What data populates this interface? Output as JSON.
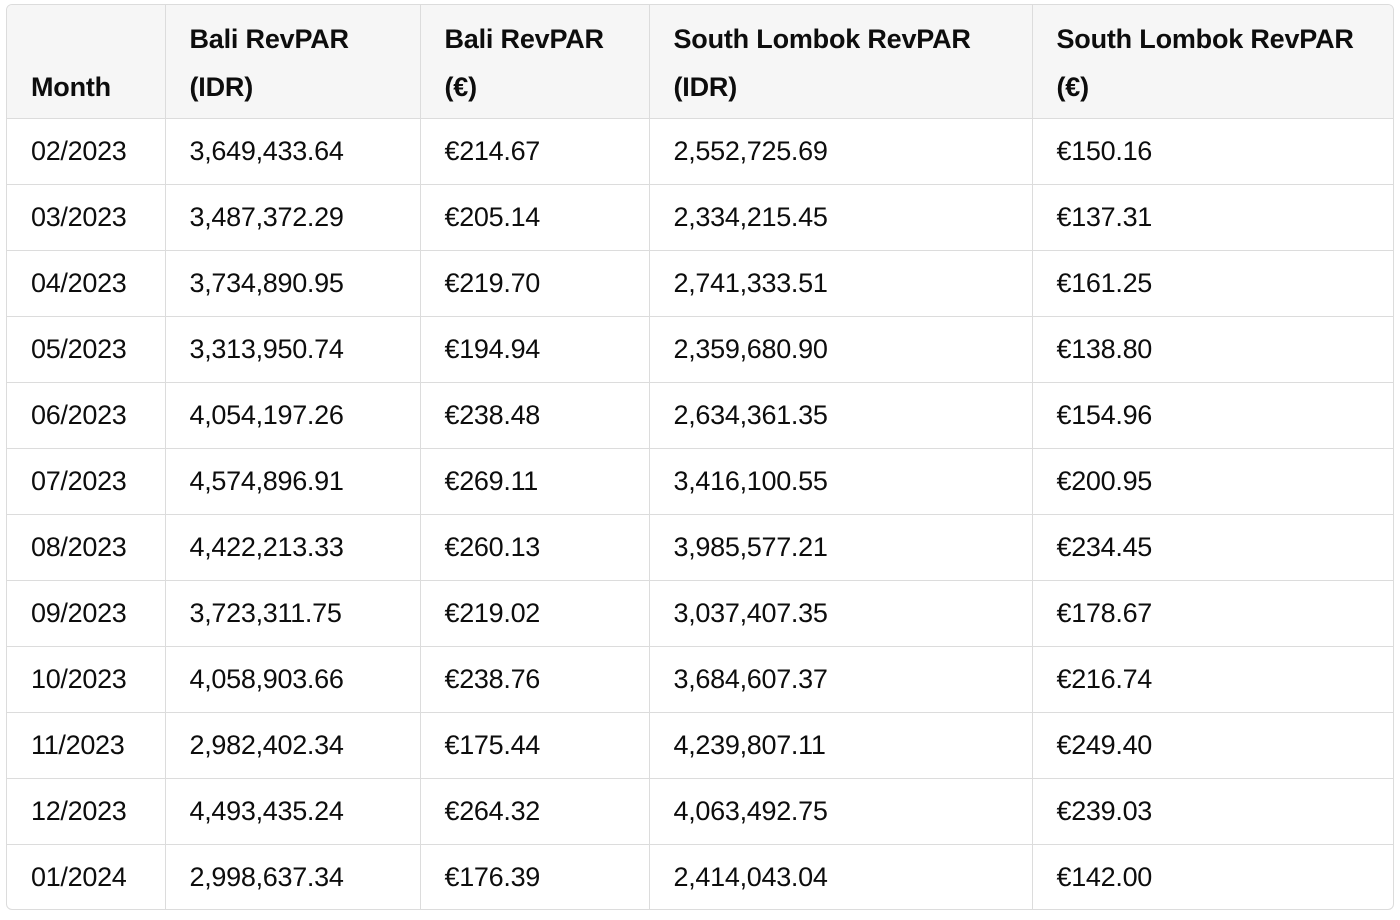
{
  "table": {
    "headers": [
      "Month",
      "Bali RevPAR\n(IDR)",
      "Bali RevPAR\n(€)",
      "South Lombok RevPAR\n(IDR)",
      "South Lombok RevPAR\n(€)"
    ],
    "rows": [
      [
        "02/2023",
        "3,649,433.64",
        "€214.67",
        "2,552,725.69",
        "€150.16"
      ],
      [
        "03/2023",
        "3,487,372.29",
        "€205.14",
        "2,334,215.45",
        "€137.31"
      ],
      [
        "04/2023",
        "3,734,890.95",
        "€219.70",
        "2,741,333.51",
        "€161.25"
      ],
      [
        "05/2023",
        "3,313,950.74",
        "€194.94",
        "2,359,680.90",
        "€138.80"
      ],
      [
        "06/2023",
        "4,054,197.26",
        "€238.48",
        "2,634,361.35",
        "€154.96"
      ],
      [
        "07/2023",
        "4,574,896.91",
        "€269.11",
        "3,416,100.55",
        "€200.95"
      ],
      [
        "08/2023",
        "4,422,213.33",
        "€260.13",
        "3,985,577.21",
        "€234.45"
      ],
      [
        "09/2023",
        "3,723,311.75",
        "€219.02",
        "3,037,407.35",
        "€178.67"
      ],
      [
        "10/2023",
        "4,058,903.66",
        "€238.76",
        "3,684,607.37",
        "€216.74"
      ],
      [
        "11/2023",
        "2,982,402.34",
        "€175.44",
        "4,239,807.11",
        "€249.40"
      ],
      [
        "12/2023",
        "4,493,435.24",
        "€264.32",
        "4,063,492.75",
        "€239.03"
      ],
      [
        "01/2024",
        "2,998,637.34",
        "€176.39",
        "2,414,043.04",
        "€142.00"
      ]
    ]
  }
}
